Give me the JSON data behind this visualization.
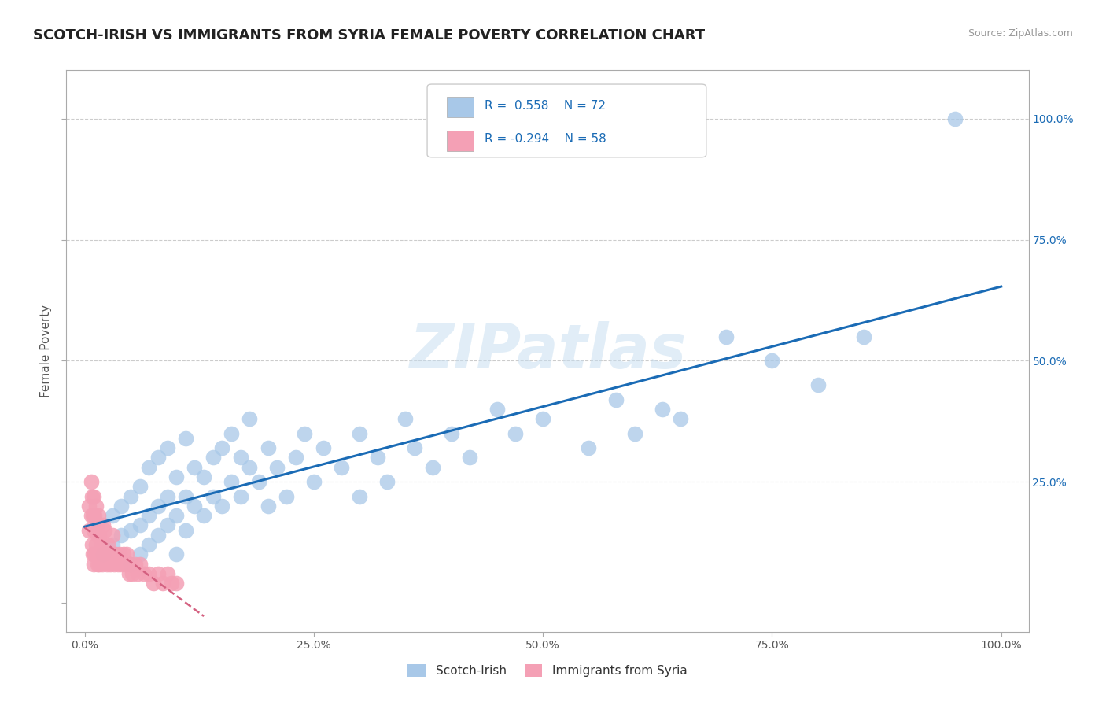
{
  "title": "SCOTCH-IRISH VS IMMIGRANTS FROM SYRIA FEMALE POVERTY CORRELATION CHART",
  "source": "Source: ZipAtlas.com",
  "ylabel": "Female Poverty",
  "R_blue": 0.558,
  "N_blue": 72,
  "R_pink": -0.294,
  "N_pink": 58,
  "blue_color": "#a8c8e8",
  "pink_color": "#f4a0b5",
  "blue_line_color": "#1a6bb5",
  "pink_line_color": "#d46080",
  "legend_label_blue": "Scotch-Irish",
  "legend_label_pink": "Immigrants from Syria",
  "watermark": "ZIPatlas",
  "background_color": "#ffffff",
  "grid_color": "#cccccc",
  "title_fontsize": 13,
  "axis_label_fontsize": 11,
  "tick_fontsize": 10,
  "blue_x": [
    0.02,
    0.03,
    0.03,
    0.04,
    0.04,
    0.05,
    0.05,
    0.05,
    0.06,
    0.06,
    0.06,
    0.07,
    0.07,
    0.07,
    0.08,
    0.08,
    0.08,
    0.09,
    0.09,
    0.09,
    0.1,
    0.1,
    0.1,
    0.11,
    0.11,
    0.11,
    0.12,
    0.12,
    0.13,
    0.13,
    0.14,
    0.14,
    0.15,
    0.15,
    0.16,
    0.16,
    0.17,
    0.17,
    0.18,
    0.18,
    0.19,
    0.2,
    0.2,
    0.21,
    0.22,
    0.23,
    0.24,
    0.25,
    0.26,
    0.28,
    0.3,
    0.3,
    0.32,
    0.33,
    0.35,
    0.36,
    0.38,
    0.4,
    0.42,
    0.45,
    0.47,
    0.5,
    0.55,
    0.58,
    0.6,
    0.63,
    0.65,
    0.7,
    0.75,
    0.8,
    0.85,
    0.95
  ],
  "blue_y": [
    0.1,
    0.12,
    0.18,
    0.14,
    0.2,
    0.08,
    0.15,
    0.22,
    0.1,
    0.16,
    0.24,
    0.12,
    0.18,
    0.28,
    0.14,
    0.2,
    0.3,
    0.16,
    0.22,
    0.32,
    0.1,
    0.18,
    0.26,
    0.15,
    0.22,
    0.34,
    0.2,
    0.28,
    0.18,
    0.26,
    0.22,
    0.3,
    0.2,
    0.32,
    0.25,
    0.35,
    0.22,
    0.3,
    0.28,
    0.38,
    0.25,
    0.2,
    0.32,
    0.28,
    0.22,
    0.3,
    0.35,
    0.25,
    0.32,
    0.28,
    0.22,
    0.35,
    0.3,
    0.25,
    0.38,
    0.32,
    0.28,
    0.35,
    0.3,
    0.4,
    0.35,
    0.38,
    0.32,
    0.42,
    0.35,
    0.4,
    0.38,
    0.55,
    0.5,
    0.45,
    0.55,
    1.0
  ],
  "pink_x": [
    0.005,
    0.005,
    0.007,
    0.007,
    0.008,
    0.008,
    0.009,
    0.009,
    0.01,
    0.01,
    0.01,
    0.011,
    0.011,
    0.012,
    0.012,
    0.013,
    0.013,
    0.014,
    0.014,
    0.015,
    0.015,
    0.016,
    0.016,
    0.017,
    0.018,
    0.019,
    0.02,
    0.02,
    0.022,
    0.022,
    0.024,
    0.025,
    0.026,
    0.028,
    0.03,
    0.03,
    0.032,
    0.034,
    0.036,
    0.038,
    0.04,
    0.042,
    0.044,
    0.046,
    0.048,
    0.05,
    0.052,
    0.055,
    0.058,
    0.06,
    0.065,
    0.07,
    0.075,
    0.08,
    0.085,
    0.09,
    0.095,
    0.1
  ],
  "pink_y": [
    0.15,
    0.2,
    0.18,
    0.25,
    0.12,
    0.22,
    0.1,
    0.18,
    0.08,
    0.15,
    0.22,
    0.1,
    0.18,
    0.12,
    0.2,
    0.1,
    0.16,
    0.08,
    0.14,
    0.1,
    0.18,
    0.08,
    0.14,
    0.1,
    0.12,
    0.08,
    0.1,
    0.16,
    0.1,
    0.15,
    0.08,
    0.12,
    0.1,
    0.08,
    0.1,
    0.14,
    0.08,
    0.1,
    0.08,
    0.1,
    0.08,
    0.1,
    0.08,
    0.1,
    0.06,
    0.08,
    0.06,
    0.08,
    0.06,
    0.08,
    0.06,
    0.06,
    0.04,
    0.06,
    0.04,
    0.06,
    0.04,
    0.04
  ]
}
